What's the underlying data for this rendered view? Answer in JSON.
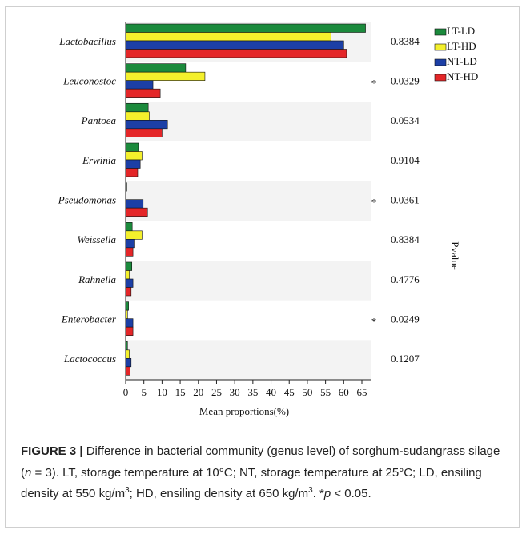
{
  "chart_data": {
    "type": "bar",
    "orientation": "horizontal",
    "categories": [
      "Lactobacillus",
      "Leuconostoc",
      "Pantoea",
      "Erwinia",
      "Pseudomonas",
      "Weissella",
      "Rahnella",
      "Enterobacter",
      "Lactococcus"
    ],
    "series": [
      {
        "name": "LT-LD",
        "color": "#1b8a3c",
        "values": [
          66,
          16.5,
          6.2,
          3.5,
          0.3,
          1.8,
          1.7,
          0.8,
          0.5
        ]
      },
      {
        "name": "LT-HD",
        "color": "#f4f02c",
        "values": [
          56.5,
          21.8,
          6.5,
          4.5,
          0.1,
          4.5,
          1,
          0.5,
          1
        ]
      },
      {
        "name": "NT-LD",
        "color": "#1c3fa6",
        "values": [
          60,
          7.5,
          11.5,
          4,
          4.8,
          2.3,
          2,
          2,
          1.5
        ]
      },
      {
        "name": "NT-HD",
        "color": "#e42628",
        "values": [
          60.8,
          9.5,
          10,
          3.3,
          6,
          2,
          1.5,
          2,
          1.2
        ]
      }
    ],
    "pvalues": [
      0.8384,
      0.0329,
      0.0534,
      0.9104,
      0.0361,
      0.8384,
      0.4776,
      0.0249,
      0.1207
    ],
    "pvalue_markers": [
      null,
      "*",
      null,
      null,
      "*",
      null,
      null,
      "*",
      null
    ],
    "xlabel": "Mean proportions(%)",
    "y2label": "Pvalue",
    "xlim": [
      0,
      65
    ],
    "xticks": [
      0,
      5,
      10,
      15,
      20,
      25,
      30,
      35,
      40,
      45,
      50,
      55,
      60,
      65
    ],
    "legend": "top-right"
  },
  "caption": {
    "label": "FIGURE 3 |",
    "segments": [
      {
        "text": " Difference in bacterial community (genus level) of sorghum-sudangrass silage ("
      },
      {
        "text": "n",
        "style": "italic"
      },
      {
        "text": " = 3). LT, storage temperature at 10°C; NT, storage temperature at 25°C; LD, ensiling density at 550 kg/m"
      },
      {
        "text": "3",
        "style": "sup"
      },
      {
        "text": "; HD, ensiling density at 650 kg/m"
      },
      {
        "text": "3",
        "style": "sup"
      },
      {
        "text": ". *"
      },
      {
        "text": "p",
        "style": "italic"
      },
      {
        "text": " < 0.05."
      }
    ]
  }
}
